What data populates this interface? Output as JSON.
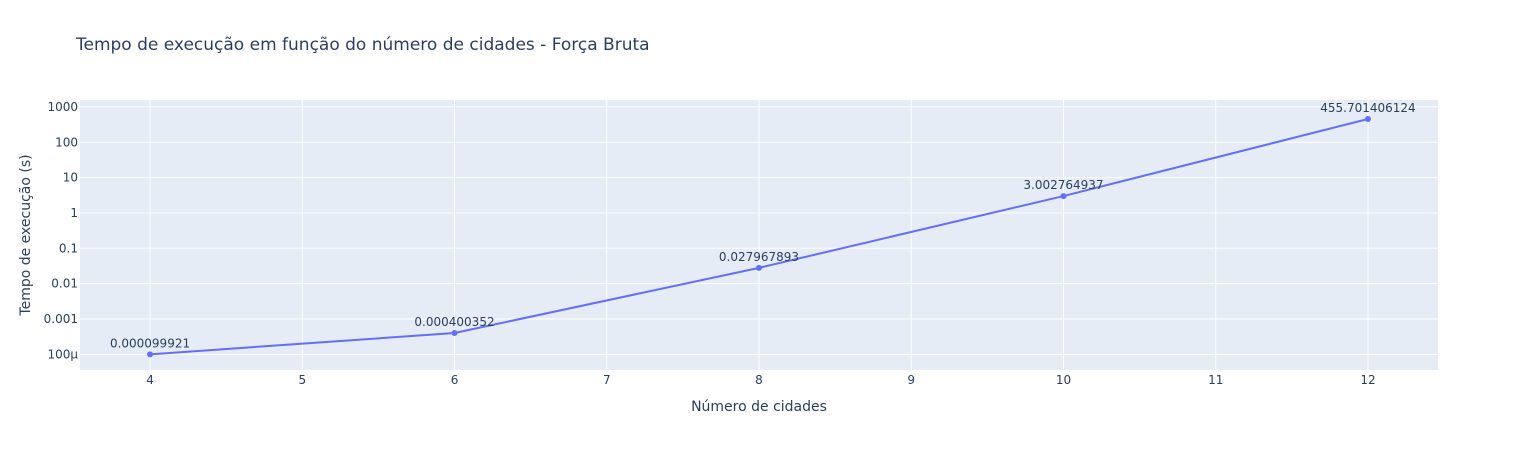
{
  "chart_data": {
    "type": "line",
    "title": "Tempo de execução em função do número de cidades - Força Bruta",
    "xlabel": "Número de cidades",
    "ylabel": "Tempo de execução (s)",
    "y_scale": "log",
    "grid": true,
    "xlim": [
      3.54,
      12.46
    ],
    "ylim": [
      3.6e-05,
      1570
    ],
    "x_ticks": [
      4,
      5,
      6,
      7,
      8,
      9,
      10,
      11,
      12
    ],
    "y_ticks": [
      {
        "value": 0.0001,
        "label": "100µ"
      },
      {
        "value": 0.001,
        "label": "0.001"
      },
      {
        "value": 0.01,
        "label": "0.01"
      },
      {
        "value": 0.1,
        "label": "0.1"
      },
      {
        "value": 1,
        "label": "1"
      },
      {
        "value": 10,
        "label": "10"
      },
      {
        "value": 100,
        "label": "100"
      },
      {
        "value": 1000,
        "label": "1000"
      }
    ],
    "series": [
      {
        "color": "#636efa",
        "x": [
          4,
          6,
          8,
          10,
          12
        ],
        "y": [
          9.9921e-05,
          0.000400352,
          0.027967893,
          3.002764937,
          455.701406124
        ],
        "labels": [
          "0.000099921",
          "0.000400352",
          "0.027967893",
          "3.002764937",
          "455.701406124"
        ]
      }
    ]
  },
  "colors": {
    "plot_background": "#e5ecf6",
    "grid": "#ffffff",
    "text": "#2a3f5f"
  }
}
